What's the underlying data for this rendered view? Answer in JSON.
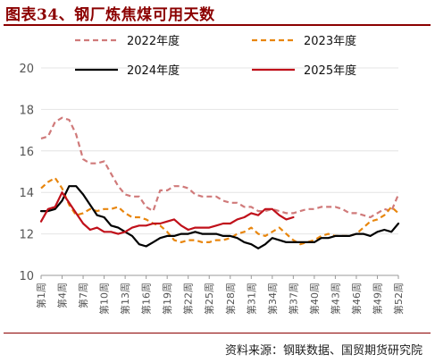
{
  "header": {
    "title": "图表34、钢厂炼焦煤可用天数"
  },
  "footer": {
    "source": "资料来源：钢联数据、国贸期货研究院"
  },
  "colors": {
    "title": "#8b0000",
    "s2022": "#d07a7a",
    "s2023": "#e8860e",
    "s2024": "#000000",
    "s2025": "#c0101a"
  },
  "chart_data": {
    "type": "line",
    "title": "图表34、钢厂炼焦煤可用天数",
    "ylim": [
      10,
      20
    ],
    "yticks": [
      10,
      12,
      14,
      16,
      18,
      20
    ],
    "xtick_labels": [
      "第1周",
      "第4周",
      "第7周",
      "第10周",
      "第13周",
      "第16周",
      "第19周",
      "第22周",
      "第25周",
      "第28周",
      "第31周",
      "第34周",
      "第37周",
      "第40周",
      "第43周",
      "第46周",
      "第49周",
      "第52周"
    ],
    "x": [
      1,
      2,
      3,
      4,
      5,
      6,
      7,
      8,
      9,
      10,
      11,
      12,
      13,
      14,
      15,
      16,
      17,
      18,
      19,
      20,
      21,
      22,
      23,
      24,
      25,
      26,
      27,
      28,
      29,
      30,
      31,
      32,
      33,
      34,
      35,
      36,
      37,
      38,
      39,
      40,
      41,
      42,
      43,
      44,
      45,
      46,
      47,
      48,
      49,
      50,
      51,
      52
    ],
    "legend_position": "top",
    "series": [
      {
        "name": "2022年度",
        "style": "dashed",
        "color": "#d07a7a",
        "values": [
          16.6,
          16.7,
          17.4,
          17.6,
          17.5,
          16.8,
          15.6,
          15.4,
          15.4,
          15.5,
          14.9,
          14.3,
          13.9,
          13.8,
          13.8,
          13.3,
          13.1,
          14.1,
          14.1,
          14.3,
          14.3,
          14.2,
          13.9,
          13.8,
          13.8,
          13.8,
          13.6,
          13.5,
          13.5,
          13.3,
          13.3,
          13.1,
          13.1,
          13.2,
          13.1,
          13.0,
          13.0,
          13.1,
          13.2,
          13.2,
          13.3,
          13.3,
          13.3,
          13.2,
          13.0,
          13.0,
          12.9,
          12.8,
          13.0,
          13.2,
          13.1,
          13.9
        ]
      },
      {
        "name": "2023年度",
        "style": "dashed",
        "color": "#e8860e",
        "values": [
          14.2,
          14.5,
          14.7,
          14.2,
          13.4,
          12.9,
          13.0,
          13.2,
          13.1,
          13.2,
          13.2,
          13.3,
          13.0,
          12.8,
          12.8,
          12.7,
          12.5,
          12.4,
          12.1,
          11.7,
          11.6,
          11.7,
          11.7,
          11.6,
          11.6,
          11.7,
          11.7,
          11.8,
          12.0,
          12.1,
          12.3,
          12.0,
          11.9,
          12.1,
          12.3,
          12.0,
          11.7,
          11.5,
          11.6,
          11.7,
          11.9,
          12.0,
          11.9,
          11.9,
          11.9,
          12.0,
          12.3,
          12.6,
          12.7,
          12.9,
          13.3,
          13.0
        ]
      },
      {
        "name": "2024年度",
        "style": "solid",
        "color": "#000000",
        "values": [
          13.1,
          13.1,
          13.2,
          13.6,
          14.3,
          14.3,
          13.9,
          13.4,
          12.9,
          12.8,
          12.4,
          12.3,
          12.1,
          11.9,
          11.5,
          11.4,
          11.6,
          11.8,
          11.9,
          11.9,
          12.0,
          12.0,
          12.1,
          12.0,
          12.0,
          12.0,
          11.9,
          11.9,
          11.8,
          11.6,
          11.5,
          11.3,
          11.5,
          11.8,
          11.7,
          11.6,
          11.6,
          11.6,
          11.6,
          11.6,
          11.8,
          11.8,
          11.9,
          11.9,
          11.9,
          12.0,
          12.0,
          11.9,
          12.1,
          12.2,
          12.1,
          12.5
        ]
      },
      {
        "name": "2025年度",
        "style": "solid",
        "color": "#c0101a",
        "values": [
          12.6,
          13.2,
          13.3,
          14.0,
          13.5,
          13.0,
          12.5,
          12.2,
          12.3,
          12.1,
          12.1,
          12.0,
          12.1,
          12.3,
          12.4,
          12.4,
          12.5,
          12.5,
          12.6,
          12.7,
          12.4,
          12.2,
          12.3,
          12.3,
          12.3,
          12.4,
          12.5,
          12.5,
          12.7,
          12.8,
          13.0,
          12.9,
          13.2,
          13.2,
          12.9,
          12.7,
          12.8,
          null,
          null,
          null,
          null,
          null,
          null,
          null,
          null,
          null,
          null,
          null,
          null,
          null,
          null,
          null
        ]
      }
    ]
  }
}
